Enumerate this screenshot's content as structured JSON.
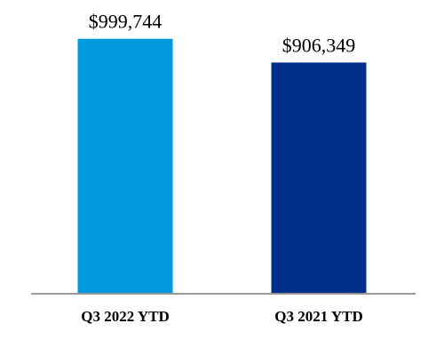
{
  "chart_data": {
    "type": "bar",
    "categories": [
      "Q3 2022 YTD",
      "Q3 2021 YTD"
    ],
    "values": [
      999744,
      906349
    ],
    "value_labels": [
      "$999,744",
      "$906,349"
    ],
    "colors": [
      "#0099dd",
      "#003087"
    ],
    "ylim": [
      0,
      1100000
    ],
    "grid": false,
    "legend": "none",
    "baseline_color": "#999999"
  }
}
